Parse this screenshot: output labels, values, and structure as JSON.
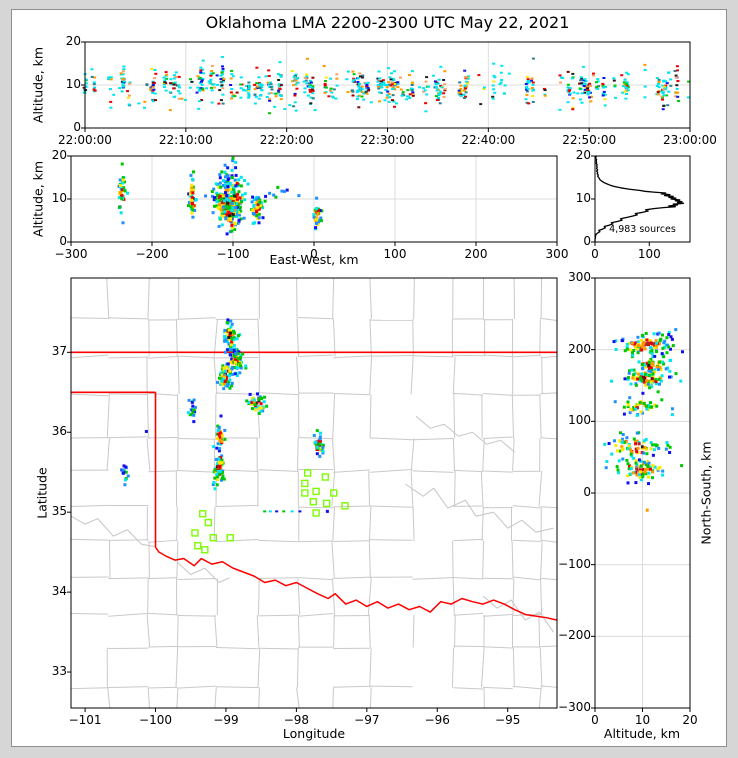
{
  "title": "Oklahoma LMA 2200-2300 UTC May 22, 2021",
  "panels": {
    "time_height": {
      "ylabel": "Altitude, km",
      "ylim": [
        0,
        20
      ],
      "yticks": [
        0,
        10,
        20
      ],
      "ytick_labels": [
        "0",
        "10",
        "20"
      ],
      "xticks_seconds": [
        0,
        600,
        1200,
        1800,
        2400,
        3000,
        3600
      ],
      "xtick_labels": [
        "22:00:00",
        "22:10:00",
        "22:20:00",
        "22:30:00",
        "22:40:00",
        "22:50:00",
        "23:00:00"
      ]
    },
    "ew_height": {
      "ylabel": "Altitude, km",
      "xlabel": "East-West, km",
      "ylim": [
        0,
        20
      ],
      "yticks": [
        0,
        10,
        20
      ],
      "ytick_labels": [
        "0",
        "10",
        "20"
      ],
      "xlim": [
        -300,
        300
      ],
      "xticks": [
        -300,
        -200,
        -100,
        0,
        100,
        200,
        300
      ],
      "xtick_labels": [
        "−300",
        "−200",
        "−100",
        "0",
        "100",
        "200",
        "300"
      ]
    },
    "alt_histogram": {
      "annotation": "4,983 sources",
      "xlim": [
        0,
        175
      ],
      "xticks": [
        0,
        100
      ],
      "xtick_labels": [
        "0",
        "100"
      ],
      "ylim": [
        0,
        20
      ],
      "yticks": [
        0,
        10,
        20
      ],
      "ytick_labels": [
        "0",
        "10",
        "20"
      ]
    },
    "map": {
      "xlabel": "Longitude",
      "ylabel": "Latitude",
      "lon_range": [
        -101.2,
        -94.3
      ],
      "lat_range": [
        32.55,
        37.93
      ],
      "xticks": [
        -101,
        -100,
        -99,
        -98,
        -97,
        -96,
        -95
      ],
      "xtick_labels": [
        "−101",
        "−100",
        "−99",
        "−98",
        "−97",
        "−96",
        "−95"
      ],
      "yticks": [
        33,
        34,
        35,
        36,
        37
      ],
      "ytick_labels": [
        "33",
        "34",
        "35",
        "36",
        "37"
      ]
    },
    "ns_height": {
      "xlabel": "Altitude, km",
      "ylabel": "North-South, km",
      "xlim": [
        0,
        20
      ],
      "xticks": [
        0,
        10,
        20
      ],
      "xtick_labels": [
        "0",
        "10",
        "20"
      ],
      "ylim": [
        -300,
        300
      ],
      "yticks": [
        300,
        200,
        100,
        0,
        -100,
        -200,
        -300
      ],
      "ytick_labels": [
        "300",
        "200",
        "100",
        "0",
        "−100",
        "−200",
        "−300"
      ]
    }
  },
  "chart_data": {
    "type": "scatter",
    "title": "Oklahoma LMA 2200-2300 UTC May 22, 2021",
    "source_count_annotation": "4,983 sources",
    "palette": {
      "blue": "#1010EE",
      "dodger": "#1E90FF",
      "cyan": "#00E5EE",
      "teal": "#2F808F",
      "green": "#00C800",
      "yellow": "#FFE800",
      "orange": "#FF9900",
      "sandy": "#F4A460",
      "red": "#EE0000",
      "firebrick": "#B22222",
      "darkred": "#8B0000",
      "black": "#202020",
      "gray": "#909090"
    },
    "histogram_curve": [
      [
        0,
        0
      ],
      [
        0.6,
        0
      ],
      [
        1.0,
        1
      ],
      [
        1.4,
        1
      ],
      [
        1.8,
        2
      ],
      [
        2.1,
        5
      ],
      [
        2.4,
        9
      ],
      [
        2.7,
        7
      ],
      [
        3.0,
        14
      ],
      [
        3.3,
        19
      ],
      [
        3.6,
        17
      ],
      [
        3.9,
        26
      ],
      [
        4.2,
        33
      ],
      [
        4.5,
        30
      ],
      [
        4.8,
        42
      ],
      [
        5.1,
        50
      ],
      [
        5.4,
        47
      ],
      [
        5.7,
        58
      ],
      [
        6.0,
        68
      ],
      [
        6.3,
        78
      ],
      [
        6.6,
        74
      ],
      [
        6.9,
        88
      ],
      [
        7.2,
        98
      ],
      [
        7.5,
        93
      ],
      [
        7.8,
        110
      ],
      [
        8.0,
        126
      ],
      [
        8.2,
        148
      ],
      [
        8.4,
        136
      ],
      [
        8.6,
        152
      ],
      [
        8.8,
        144
      ],
      [
        9.0,
        163
      ],
      [
        9.2,
        152
      ],
      [
        9.4,
        160
      ],
      [
        9.6,
        148
      ],
      [
        9.8,
        156
      ],
      [
        10.0,
        140
      ],
      [
        10.2,
        149
      ],
      [
        10.4,
        136
      ],
      [
        10.6,
        144
      ],
      [
        10.8,
        128
      ],
      [
        11.0,
        138
      ],
      [
        11.2,
        122
      ],
      [
        11.4,
        130
      ],
      [
        11.6,
        108
      ],
      [
        11.8,
        92
      ],
      [
        12.0,
        82
      ],
      [
        12.3,
        62
      ],
      [
        12.6,
        47
      ],
      [
        12.9,
        36
      ],
      [
        13.2,
        28
      ],
      [
        13.5,
        22
      ],
      [
        13.8,
        17
      ],
      [
        14.1,
        13
      ],
      [
        14.4,
        10
      ],
      [
        14.7,
        8
      ],
      [
        15.0,
        7
      ],
      [
        15.3,
        5
      ],
      [
        15.6,
        6
      ],
      [
        15.9,
        4
      ],
      [
        16.2,
        5
      ],
      [
        16.5,
        3
      ],
      [
        16.8,
        5
      ],
      [
        17.1,
        3
      ],
      [
        17.4,
        4
      ],
      [
        17.7,
        3
      ],
      [
        18.0,
        4
      ],
      [
        18.3,
        2
      ],
      [
        18.6,
        3
      ],
      [
        18.9,
        2
      ],
      [
        19.2,
        3
      ],
      [
        19.5,
        1
      ],
      [
        19.8,
        2
      ],
      [
        20,
        1
      ]
    ],
    "map_layers": {
      "state_border_color": "#FF0000",
      "state_border": {
        "north_lat": 37.0,
        "panhandle_south_lat": 36.5,
        "west_lon": -100.0,
        "river_join_lat": 34.56
      },
      "red_river": [
        [
          -100.0,
          34.56
        ],
        [
          -99.95,
          34.5
        ],
        [
          -99.85,
          34.45
        ],
        [
          -99.72,
          34.4
        ],
        [
          -99.6,
          34.42
        ],
        [
          -99.45,
          34.33
        ],
        [
          -99.35,
          34.42
        ],
        [
          -99.2,
          34.35
        ],
        [
          -99.05,
          34.38
        ],
        [
          -98.9,
          34.3
        ],
        [
          -98.75,
          34.25
        ],
        [
          -98.6,
          34.2
        ],
        [
          -98.45,
          34.12
        ],
        [
          -98.3,
          34.15
        ],
        [
          -98.15,
          34.08
        ],
        [
          -98.0,
          34.12
        ],
        [
          -97.85,
          34.05
        ],
        [
          -97.7,
          33.98
        ],
        [
          -97.55,
          33.92
        ],
        [
          -97.45,
          33.98
        ],
        [
          -97.3,
          33.85
        ],
        [
          -97.15,
          33.9
        ],
        [
          -97.0,
          33.82
        ],
        [
          -96.85,
          33.88
        ],
        [
          -96.7,
          33.8
        ],
        [
          -96.55,
          33.85
        ],
        [
          -96.4,
          33.78
        ],
        [
          -96.25,
          33.82
        ],
        [
          -96.1,
          33.75
        ],
        [
          -95.95,
          33.88
        ],
        [
          -95.8,
          33.85
        ],
        [
          -95.65,
          33.92
        ],
        [
          -95.5,
          33.88
        ],
        [
          -95.35,
          33.85
        ],
        [
          -95.2,
          33.9
        ],
        [
          -95.05,
          33.85
        ],
        [
          -94.9,
          33.78
        ],
        [
          -94.75,
          33.72
        ],
        [
          -94.6,
          33.7
        ],
        [
          -94.45,
          33.68
        ],
        [
          -94.3,
          33.65
        ]
      ],
      "county_color": "#C9C9C9",
      "gray_rivers": [
        [
          [
            -96.45,
            35.35
          ],
          [
            -96.2,
            35.2
          ],
          [
            -96.05,
            35.3
          ],
          [
            -95.85,
            35.05
          ],
          [
            -95.6,
            35.15
          ],
          [
            -95.45,
            34.95
          ],
          [
            -95.2,
            35.0
          ],
          [
            -95.0,
            34.8
          ],
          [
            -94.8,
            34.9
          ],
          [
            -94.6,
            34.75
          ],
          [
            -94.35,
            34.8
          ]
        ],
        [
          [
            -95.35,
            33.95
          ],
          [
            -95.15,
            33.8
          ],
          [
            -94.95,
            33.9
          ],
          [
            -94.75,
            33.65
          ],
          [
            -94.55,
            33.75
          ],
          [
            -94.35,
            33.5
          ]
        ],
        [
          [
            -101.2,
            34.95
          ],
          [
            -101.0,
            34.85
          ],
          [
            -100.82,
            34.92
          ],
          [
            -100.6,
            34.7
          ],
          [
            -100.4,
            34.78
          ],
          [
            -100.2,
            34.6
          ],
          [
            -100.02,
            34.57
          ]
        ],
        [
          [
            -99.7,
            34.38
          ],
          [
            -99.5,
            34.22
          ],
          [
            -99.3,
            34.3
          ],
          [
            -99.1,
            34.12
          ],
          [
            -98.95,
            34.18
          ]
        ],
        [
          [
            -96.3,
            36.2
          ],
          [
            -96.1,
            36.05
          ],
          [
            -95.9,
            36.1
          ],
          [
            -95.7,
            35.95
          ],
          [
            -95.5,
            36.0
          ],
          [
            -95.3,
            35.85
          ],
          [
            -95.1,
            35.9
          ],
          [
            -94.9,
            35.75
          ]
        ]
      ],
      "station_color": "#7CFC00",
      "stations": [
        [
          -97.84,
          35.49
        ],
        [
          -97.59,
          35.44
        ],
        [
          -97.88,
          35.36
        ],
        [
          -97.72,
          35.26
        ],
        [
          -97.88,
          35.24
        ],
        [
          -97.47,
          35.24
        ],
        [
          -97.76,
          35.13
        ],
        [
          -97.57,
          35.11
        ],
        [
          -97.31,
          35.08
        ],
        [
          -97.72,
          34.99
        ],
        [
          -99.33,
          34.98
        ],
        [
          -99.25,
          34.87
        ],
        [
          -99.44,
          34.74
        ],
        [
          -99.18,
          34.68
        ],
        [
          -98.94,
          34.68
        ],
        [
          -99.4,
          34.58
        ],
        [
          -99.3,
          34.53
        ]
      ]
    },
    "map_clusters": [
      {
        "lon": -98.94,
        "lat": 37.2,
        "sx": 0.045,
        "sy": 0.085,
        "n": 75,
        "style": "hot"
      },
      {
        "lon": -98.88,
        "lat": 37.02,
        "sx": 0.03,
        "sy": 0.04,
        "n": 15,
        "style": "cool"
      },
      {
        "lon": -98.85,
        "lat": 36.88,
        "sx": 0.055,
        "sy": 0.065,
        "n": 55,
        "style": "hot"
      },
      {
        "lon": -99.0,
        "lat": 36.7,
        "sx": 0.05,
        "sy": 0.08,
        "n": 75,
        "style": "dark"
      },
      {
        "lon": -98.55,
        "lat": 36.37,
        "sx": 0.075,
        "sy": 0.055,
        "n": 45,
        "style": "hot"
      },
      {
        "lon": -99.47,
        "lat": 36.28,
        "sx": 0.03,
        "sy": 0.065,
        "n": 18,
        "style": "cool"
      },
      {
        "lon": -99.08,
        "lat": 35.95,
        "sx": 0.03,
        "sy": 0.085,
        "n": 30,
        "style": "hot"
      },
      {
        "lon": -99.1,
        "lat": 35.57,
        "sx": 0.04,
        "sy": 0.11,
        "n": 70,
        "style": "dark"
      },
      {
        "lon": -100.44,
        "lat": 35.52,
        "sx": 0.028,
        "sy": 0.05,
        "n": 14,
        "style": "cool"
      },
      {
        "lon": -97.68,
        "lat": 35.83,
        "sx": 0.03,
        "sy": 0.06,
        "n": 38,
        "style": "hot"
      }
    ],
    "map_singles": [
      [
        -100.13,
        36.01
      ],
      [
        -97.56,
        35.01
      ]
    ],
    "map_dot_row": {
      "lat": 35.01,
      "lons": [
        -98.45,
        -98.37,
        -98.28,
        -98.18,
        -98.06,
        -97.95
      ]
    },
    "ew_clusters": [
      {
        "x": -237,
        "alt": 11.5,
        "sx": 2.5,
        "sy": 2.2,
        "n": 35,
        "style": "hot"
      },
      {
        "x": -150,
        "alt": 10.0,
        "sx": 2.5,
        "sy": 2.6,
        "n": 45,
        "style": "hot"
      },
      {
        "x": -108,
        "alt": 9.5,
        "sx": 8.0,
        "sy": 2.6,
        "n": 150,
        "style": "dark"
      },
      {
        "x": -97,
        "alt": 10.5,
        "sx": 6.0,
        "sy": 2.8,
        "n": 80,
        "style": "hot"
      },
      {
        "x": -102,
        "alt": 6.0,
        "sx": 5.0,
        "sy": 1.8,
        "n": 40,
        "style": "hot"
      },
      {
        "x": -70,
        "alt": 8.0,
        "sx": 3.5,
        "sy": 1.5,
        "n": 50,
        "style": "hot"
      },
      {
        "x": 4,
        "alt": 6.5,
        "sx": 2.0,
        "sy": 1.5,
        "n": 40,
        "style": "hot"
      },
      {
        "x": -105,
        "alt": 15.5,
        "sx": 6.0,
        "sy": 1.5,
        "n": 12,
        "style": "cool"
      },
      {
        "x": -40,
        "alt": 11.0,
        "sx": 12.0,
        "sy": 0.6,
        "n": 9,
        "style": "cool"
      }
    ],
    "ns_clusters": [
      {
        "ns": 207,
        "alt": 11.0,
        "sns": 7.0,
        "salt": 2.8,
        "n": 110,
        "style": "hot"
      },
      {
        "ns": 178,
        "alt": 12.0,
        "sns": 4.5,
        "salt": 1.8,
        "n": 50,
        "style": "hot"
      },
      {
        "ns": 160,
        "alt": 11.0,
        "sns": 6.5,
        "salt": 2.6,
        "n": 85,
        "style": "dark"
      },
      {
        "ns": 120,
        "alt": 9.5,
        "sns": 5.5,
        "salt": 2.4,
        "n": 45,
        "style": "hot"
      },
      {
        "ns": 65,
        "alt": 9.0,
        "sns": 8.0,
        "salt": 3.0,
        "n": 70,
        "style": "hot"
      },
      {
        "ns": 33,
        "alt": 9.5,
        "sns": 7.0,
        "salt": 2.6,
        "n": 85,
        "style": "dark"
      }
    ],
    "ns_outliers": [
      [
        -24,
        11,
        "#FF9900"
      ],
      [
        228,
        17,
        "#1E90FF"
      ],
      [
        218,
        16,
        "#1010EE"
      ]
    ],
    "time_panel": {
      "n_flashes": 150,
      "extra_singles": 55,
      "alt_center_range": [
        8.2,
        11.6
      ]
    }
  }
}
